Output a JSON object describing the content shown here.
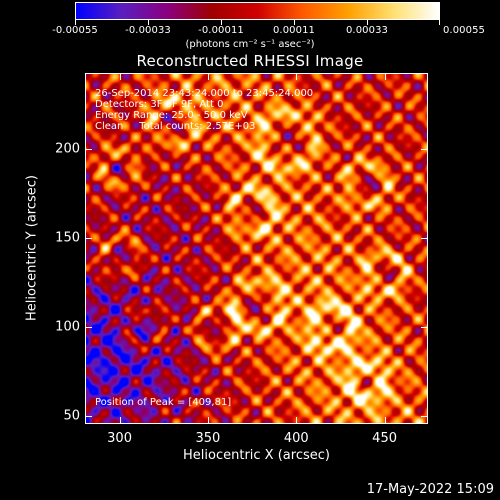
{
  "colorbar": {
    "colors": [
      "#0000ff",
      "#5a1fbf",
      "#8a0080",
      "#a00000",
      "#d00000",
      "#ff5a00",
      "#ffa000",
      "#ffe070",
      "#ffffff"
    ],
    "labels": [
      "-0.00055",
      "-0.00033",
      "-0.00011",
      "0.00011",
      "0.00033",
      "0.00055"
    ]
  },
  "chart_data": {
    "type": "heatmap",
    "title": "Reconstructed RHESSI Image",
    "xlabel": "Heliocentric X (arcsec)",
    "ylabel": "Heliocentric Y (arcsec)",
    "units": "(photons cm⁻² s⁻¹ asec⁻²)",
    "xlim": [
      281,
      474
    ],
    "ylim": [
      46,
      242
    ],
    "xticks": [
      300,
      350,
      400,
      450
    ],
    "yticks": [
      50,
      100,
      150,
      200
    ],
    "zlim": [
      -0.00055,
      0.00055
    ],
    "peak": [
      409,
      81
    ]
  },
  "annotation": {
    "time": "26-Sep-2014 23:43:24.000 to 23:45:24.000",
    "detectors": "Detectors: 3F 6F 9F, Att 0",
    "energy": "Energy Range: 25.0 - 50.0 keV",
    "clean": "Clean     Total counts: 2.57E+03",
    "peak": "Position of Peak = [409,81]"
  },
  "footer": {
    "timestamp": "17-May-2022 15:09"
  }
}
